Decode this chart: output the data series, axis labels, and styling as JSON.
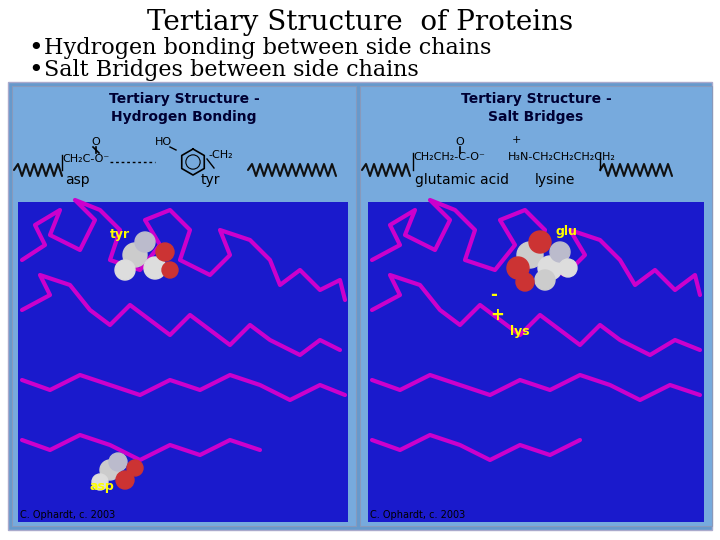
{
  "title": "Tertiary Structure  of Proteins",
  "bullet1": "Hydrogen bonding between side chains",
  "bullet2": "Salt Bridges between side chains",
  "title_fontsize": 20,
  "bullet_fontsize": 16,
  "background_color": "#ffffff",
  "panel_bg_color": "#6699cc",
  "left_panel_title": "Tertiary Structure -\nHydrogen Bonding",
  "right_panel_title": "Tertiary Structure -\nSalt Bridges",
  "left_label1": "asp",
  "left_label2": "tyr",
  "right_label1": "glutamic acid",
  "right_label2": "lysine",
  "credit": "C. Ophardt, c. 2003",
  "panel_title_fontsize": 10,
  "label_fontsize": 9,
  "credit_fontsize": 7,
  "mol_bg": "#1a1acc"
}
